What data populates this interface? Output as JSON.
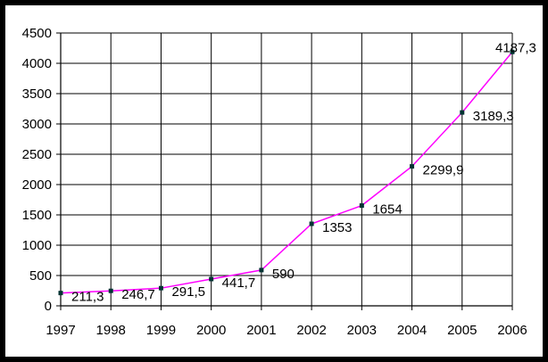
{
  "chart_data": {
    "type": "line",
    "title": "",
    "xlabel": "",
    "ylabel": "",
    "x": [
      "1997",
      "1998",
      "1999",
      "2000",
      "2001",
      "2002",
      "2003",
      "2004",
      "2005",
      "2006"
    ],
    "series": [
      {
        "values": [
          211.3,
          246.7,
          291.5,
          441.7,
          590,
          1353,
          1654,
          2299.9,
          3189.3,
          4187.3
        ],
        "data_labels": [
          "211,3",
          "246,7",
          "291,5",
          "441,7",
          "590",
          "1353",
          "1654",
          "2299,9",
          "3189,3",
          "4187,3"
        ],
        "color": "#ff00ff",
        "marker_color": "#003333"
      }
    ],
    "ylim": [
      0,
      4500
    ],
    "yticks": [
      0,
      500,
      1000,
      1500,
      2000,
      2500,
      3000,
      3500,
      4000,
      4500
    ],
    "grid": true,
    "legend": "none",
    "background": "#ffffff",
    "frame_color": "#000000"
  }
}
